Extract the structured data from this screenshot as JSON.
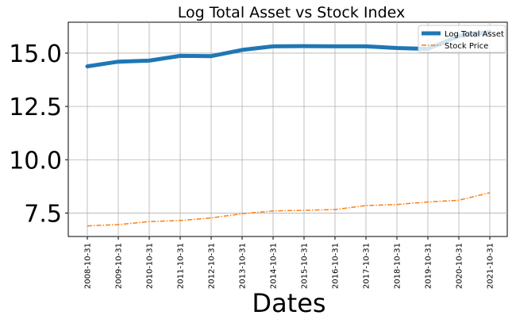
{
  "chart_data": {
    "type": "line",
    "title": "Log Total Asset vs Stock Index",
    "xlabel": "Dates",
    "ylabel": "",
    "x": [
      "2008-10-31",
      "2009-10-31",
      "2010-10-31",
      "2011-10-31",
      "2012-10-31",
      "2013-10-31",
      "2014-10-31",
      "2015-10-31",
      "2016-10-31",
      "2017-10-31",
      "2018-10-31",
      "2019-10-31",
      "2020-10-31",
      "2021-10-31"
    ],
    "yticks": [
      "7.5",
      "10.0",
      "12.5",
      "15.0"
    ],
    "ylim": [
      6.4,
      16.45
    ],
    "grid": true,
    "legend_position": "top-right",
    "series": [
      {
        "name": "Log Total Asset",
        "color": "#1f77b4",
        "style": "solid-thick",
        "values": [
          14.38,
          14.6,
          14.65,
          14.87,
          14.86,
          15.15,
          15.32,
          15.33,
          15.32,
          15.32,
          15.24,
          15.2,
          15.8,
          16.0
        ]
      },
      {
        "name": "Stock Price",
        "color": "#ff7f0e",
        "style": "dash-dot",
        "values": [
          6.9,
          6.96,
          7.1,
          7.15,
          7.27,
          7.47,
          7.6,
          7.63,
          7.66,
          7.85,
          7.9,
          8.02,
          8.1,
          8.45
        ]
      }
    ]
  }
}
